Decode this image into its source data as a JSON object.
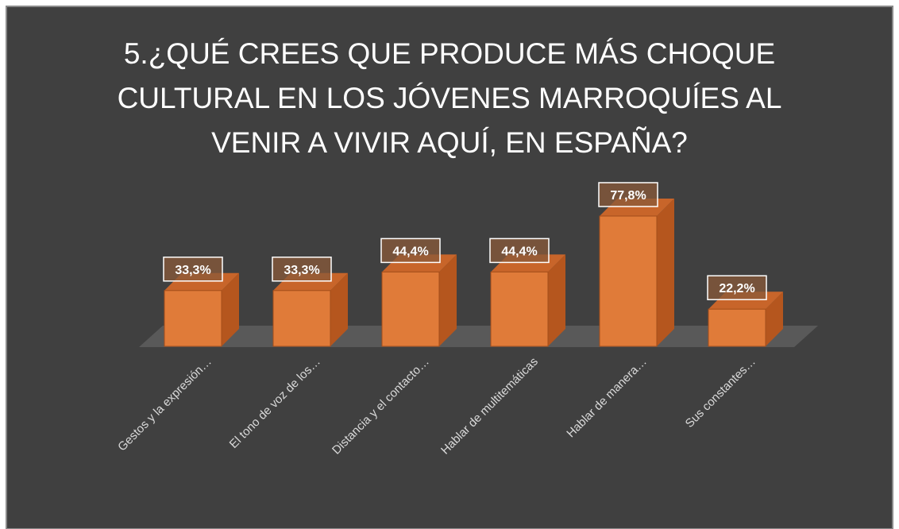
{
  "chart_data": {
    "type": "bar3d",
    "title": "5.¿QUÉ CREES QUE PRODUCE MÁS CHOQUE CULTURAL EN LOS JÓVENES MARROQUÍES AL VENIR A VIVIR AQUÍ, EN ESPAÑA?",
    "categories": [
      "Gestos y la expresión…",
      "El tono de voz de los…",
      "Distancia y el contacto…",
      "Hablar de multitemáticas",
      "Hablar de manera…",
      "Sus constantes…"
    ],
    "values": [
      33.3,
      33.3,
      44.4,
      44.4,
      77.8,
      22.2
    ],
    "value_labels": [
      "33,3%",
      "33,3%",
      "44,4%",
      "44,4%",
      "77,8%",
      "22,2%"
    ],
    "color": "#e07b39"
  }
}
